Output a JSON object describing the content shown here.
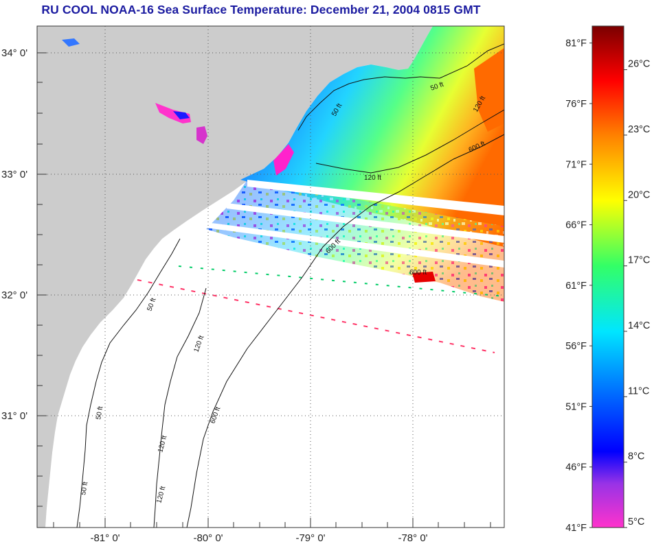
{
  "title": "RU COOL  NOAA-16  Sea Surface Temperature:  December 21, 2004 0815 GMT",
  "map": {
    "lon_range": [
      -81.66,
      -77.12
    ],
    "lat_range": [
      30.09,
      34.24
    ],
    "lat_ticks": [
      {
        "value": 34,
        "label": "34° 0'"
      },
      {
        "value": 33,
        "label": "33° 0'"
      },
      {
        "value": 32,
        "label": "32° 0'"
      },
      {
        "value": 31,
        "label": "31° 0'"
      }
    ],
    "lon_ticks": [
      {
        "value": -81,
        "label": "-81° 0'"
      },
      {
        "value": -80,
        "label": "-80° 0'"
      },
      {
        "value": -79,
        "label": "-79° 0'"
      },
      {
        "value": -78,
        "label": "-78° 0'"
      }
    ],
    "contour_labels": [
      "50 ft",
      "120 ft",
      "600 ft",
      "50 ft",
      "120 ft",
      "600 ft",
      "50 ft",
      "120 ft",
      "600 ft",
      "50 ft",
      "120 ft",
      "50 ft",
      "120 ft",
      "600 ft"
    ],
    "land_color": "#cccccc",
    "gridlines": true
  },
  "colorbar": {
    "fahrenheit_labels": [
      "81°F",
      "76°F",
      "71°F",
      "66°F",
      "61°F",
      "56°F",
      "51°F",
      "46°F",
      "41°F"
    ],
    "fahrenheit_values": [
      81,
      76,
      71,
      66,
      61,
      56,
      51,
      46,
      41
    ],
    "celsius_labels": [
      "26°C",
      "23°C",
      "20°C",
      "17°C",
      "14°C",
      "11°C",
      "8°C",
      "5°C"
    ],
    "celsius_values": [
      26,
      23,
      20,
      17,
      14,
      11,
      8,
      5
    ],
    "range_c": [
      5,
      28
    ],
    "stops": [
      {
        "c": 5,
        "color": "#ff33cc"
      },
      {
        "c": 7,
        "color": "#9933e6"
      },
      {
        "c": 8.5,
        "color": "#0000ff"
      },
      {
        "c": 11,
        "color": "#0066ff"
      },
      {
        "c": 14,
        "color": "#00e6ff"
      },
      {
        "c": 17,
        "color": "#33ff66"
      },
      {
        "c": 20,
        "color": "#ffff00"
      },
      {
        "c": 23,
        "color": "#ff8000"
      },
      {
        "c": 25.5,
        "color": "#ff0000"
      },
      {
        "c": 28,
        "color": "#7a0000"
      }
    ]
  }
}
